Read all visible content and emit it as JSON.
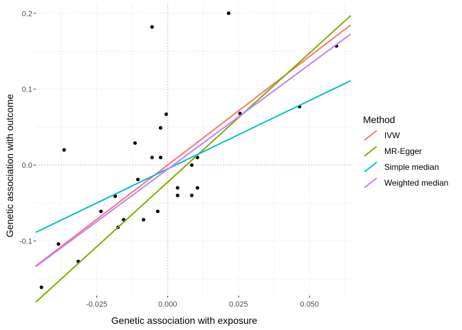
{
  "chart_data": {
    "type": "scatter",
    "title": "",
    "xlabel": "Genetic association with exposure",
    "ylabel": "Genetic association with outcome",
    "xlim": [
      -0.0465,
      0.0645
    ],
    "ylim": [
      -0.172,
      0.212
    ],
    "grid": true,
    "x_ticks": [
      -0.025,
      0.0,
      0.025,
      0.05
    ],
    "x_tick_labels": [
      "-0.025",
      "0.000",
      "0.025",
      "0.050"
    ],
    "y_ticks": [
      -0.1,
      0.0,
      0.1,
      0.2
    ],
    "y_tick_labels": [
      "-0.1",
      "0.0",
      "0.1",
      "0.2"
    ],
    "reference_lines": {
      "x": 0,
      "y": 0,
      "color": "#f8a0a0"
    },
    "points": [
      {
        "x": -0.0445,
        "y": -0.161
      },
      {
        "x": -0.0385,
        "y": -0.104
      },
      {
        "x": -0.0365,
        "y": 0.02
      },
      {
        "x": -0.0315,
        "y": -0.127
      },
      {
        "x": -0.0235,
        "y": -0.061
      },
      {
        "x": -0.0185,
        "y": -0.041
      },
      {
        "x": -0.0175,
        "y": -0.082
      },
      {
        "x": -0.0155,
        "y": -0.072
      },
      {
        "x": -0.0115,
        "y": 0.029
      },
      {
        "x": -0.0105,
        "y": -0.019
      },
      {
        "x": -0.0085,
        "y": -0.072
      },
      {
        "x": -0.0055,
        "y": 0.182
      },
      {
        "x": -0.0055,
        "y": 0.01
      },
      {
        "x": -0.0035,
        "y": -0.061
      },
      {
        "x": -0.0025,
        "y": 0.049
      },
      {
        "x": -0.0025,
        "y": 0.01
      },
      {
        "x": -0.0005,
        "y": 0.067
      },
      {
        "x": 0.0035,
        "y": -0.03
      },
      {
        "x": 0.0035,
        "y": -0.04
      },
      {
        "x": 0.0085,
        "y": -0.04
      },
      {
        "x": 0.0085,
        "y": 0.0
      },
      {
        "x": 0.0105,
        "y": 0.01
      },
      {
        "x": 0.0105,
        "y": -0.03
      },
      {
        "x": 0.0215,
        "y": 0.2
      },
      {
        "x": 0.0255,
        "y": 0.068
      },
      {
        "x": 0.0465,
        "y": 0.077
      },
      {
        "x": 0.0595,
        "y": 0.157
      }
    ],
    "series": [
      {
        "name": "IVW",
        "slope": 2.86,
        "intercept": 0.0,
        "color": "#f8766d"
      },
      {
        "name": "MR-Egger",
        "slope": 3.4,
        "intercept": -0.0225,
        "color": "#7cae00"
      },
      {
        "name": "Simple median",
        "slope": 1.8,
        "intercept": -0.005,
        "color": "#00bfc4"
      },
      {
        "name": "Weighted median",
        "slope": 2.76,
        "intercept": -0.0055,
        "color": "#c77cff"
      }
    ],
    "legend": {
      "title": "Method",
      "position": "right"
    }
  }
}
